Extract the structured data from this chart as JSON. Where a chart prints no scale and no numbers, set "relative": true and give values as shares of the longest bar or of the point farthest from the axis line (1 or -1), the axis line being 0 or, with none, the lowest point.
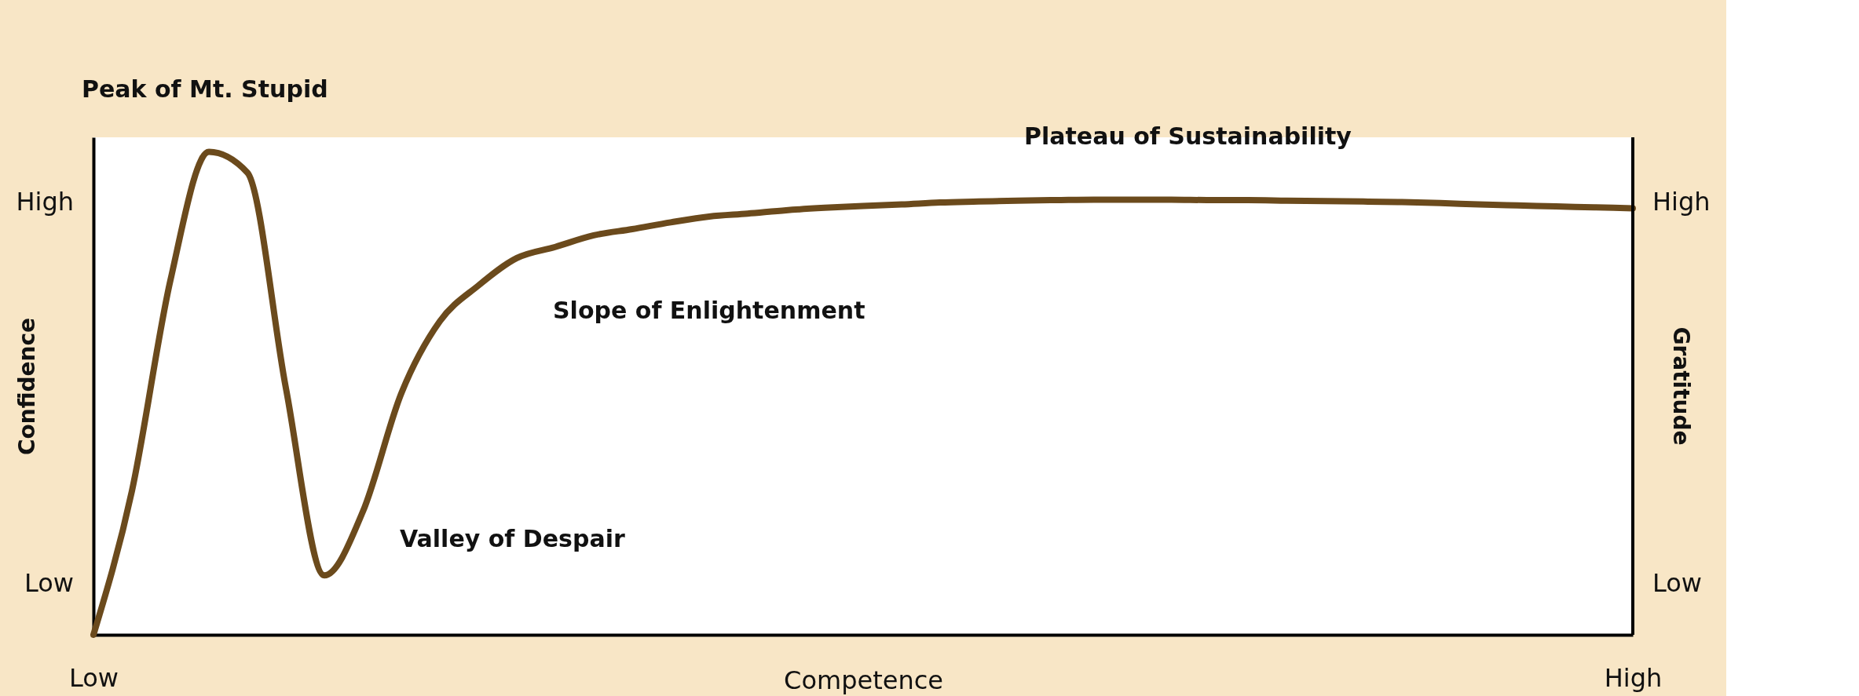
{
  "chart_data": {
    "type": "line",
    "relative": true,
    "xlabel": "Competence",
    "ylabel": "Confidence",
    "y2label": "Gratitude",
    "categories": [
      "Low",
      null,
      null,
      null,
      null,
      null,
      null,
      null,
      null,
      null,
      null,
      null,
      null,
      null,
      null,
      null,
      null,
      null,
      null,
      null,
      null,
      null,
      null,
      null,
      null,
      null,
      null,
      null,
      null,
      null,
      null,
      null,
      null,
      null,
      null,
      null,
      null,
      null,
      null,
      null,
      "High"
    ],
    "series": [
      {
        "color": "#6b4a1c",
        "values": [
          0,
          0.298,
          0.734,
          1,
          0.957,
          0.511,
          0.123,
          0.255,
          0.5,
          0.649,
          0.723,
          0.78,
          0.803,
          0.827,
          0.84,
          0.854,
          0.866,
          0.872,
          0.879,
          0.884,
          0.888,
          0.891,
          0.895,
          0.897,
          0.899,
          0.9,
          0.901,
          0.901,
          0.901,
          0.9,
          0.9,
          0.899,
          0.898,
          0.897,
          0.896,
          0.894,
          0.891,
          0.889,
          0.887,
          0.885,
          0.883
        ]
      }
    ],
    "annotations": [
      "Peak of Mt. Stupid",
      "Valley of Despair",
      "Slope of Enlightenment",
      "Plateau of Sustainability",
      "High",
      "Low",
      "High",
      "Low"
    ],
    "line_style": "solid"
  }
}
